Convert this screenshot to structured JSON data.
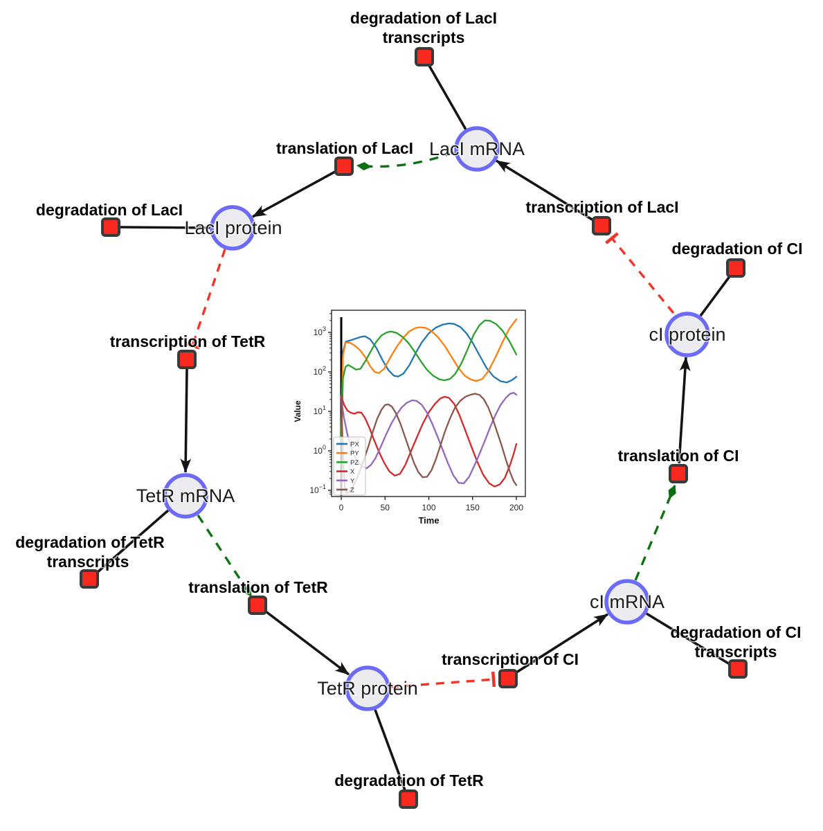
{
  "diagram": {
    "species": {
      "laci_mrna": {
        "label": "LacI mRNA"
      },
      "laci_protein": {
        "label": "LacI protein"
      },
      "tetr_mrna": {
        "label": "TetR mRNA"
      },
      "tetr_protein": {
        "label": "TetR protein"
      },
      "ci_mrna": {
        "label": "cI mRNA"
      },
      "ci_protein": {
        "label": "cI protein"
      }
    },
    "reactions": {
      "deg_laci_tx": {
        "lines": [
          "degradation of LacI",
          "transcripts"
        ]
      },
      "transl_laci": {
        "label": "translation of LacI"
      },
      "transcr_laci": {
        "label": "transcription of LacI"
      },
      "deg_laci": {
        "label": "degradation of LacI"
      },
      "transcr_tetr": {
        "label": "transcription of TetR"
      },
      "deg_ci": {
        "label": "degradation of CI"
      },
      "transl_ci": {
        "label": "translation of CI"
      },
      "deg_tetr_tx": {
        "lines": [
          "degradation of TetR",
          "transcripts"
        ]
      },
      "transl_tetr": {
        "label": "translation of TetR"
      },
      "transcr_ci": {
        "label": "transcription of CI"
      },
      "deg_ci_tx": {
        "lines": [
          "degradation of CI",
          "transcripts"
        ]
      },
      "deg_tetr": {
        "label": "degradation of TetR"
      }
    },
    "colors": {
      "species_fill": "#ebebf0",
      "species_border": "#6b6bf7",
      "reaction_fill": "#f8291f",
      "reaction_border": "#3a3a3a",
      "consumption_production_edge": "#141414",
      "modifier_edge": "#0d7212",
      "inhibition_edge": "#f43226"
    }
  },
  "chart_data": {
    "type": "line",
    "title": "",
    "xlabel": "Time",
    "ylabel": "Value",
    "x_ticks": [
      0,
      50,
      100,
      150,
      200
    ],
    "xlim": [
      -11,
      210
    ],
    "y_scale": "log",
    "y_tick_exponents": [
      -1,
      0,
      1,
      2,
      3
    ],
    "ylim_exponents": [
      -1.16,
      3.56
    ],
    "grid": false,
    "legend_position": "lower left",
    "vline_at_x": 0,
    "series": [
      {
        "name": "PX",
        "color": "#1f77b4",
        "points": [
          [
            0,
            3
          ],
          [
            2,
            320
          ],
          [
            5,
            580
          ],
          [
            10,
            625
          ],
          [
            16,
            690
          ],
          [
            22,
            765
          ],
          [
            27,
            800
          ],
          [
            33,
            670
          ],
          [
            40,
            410
          ],
          [
            47,
            200
          ],
          [
            54,
            110
          ],
          [
            60,
            80
          ],
          [
            65,
            76
          ],
          [
            71,
            90
          ],
          [
            78,
            150
          ],
          [
            85,
            300
          ],
          [
            92,
            560
          ],
          [
            100,
            950
          ],
          [
            108,
            1320
          ],
          [
            116,
            1580
          ],
          [
            123,
            1690
          ],
          [
            129,
            1640
          ],
          [
            136,
            1370
          ],
          [
            143,
            950
          ],
          [
            150,
            550
          ],
          [
            158,
            260
          ],
          [
            166,
            125
          ],
          [
            174,
            76
          ],
          [
            182,
            58
          ],
          [
            189,
            54
          ],
          [
            195,
            62
          ],
          [
            200,
            75
          ]
        ]
      },
      {
        "name": "PY",
        "color": "#ff7f0e",
        "points": [
          [
            0,
            2
          ],
          [
            2,
            260
          ],
          [
            5,
            560
          ],
          [
            10,
            545
          ],
          [
            16,
            455
          ],
          [
            22,
            345
          ],
          [
            28,
            225
          ],
          [
            33,
            140
          ],
          [
            38,
            100
          ],
          [
            43,
            93
          ],
          [
            49,
            120
          ],
          [
            56,
            230
          ],
          [
            63,
            420
          ],
          [
            70,
            700
          ],
          [
            78,
            1080
          ],
          [
            85,
            1300
          ],
          [
            90,
            1350
          ],
          [
            96,
            1310
          ],
          [
            103,
            1090
          ],
          [
            110,
            780
          ],
          [
            118,
            460
          ],
          [
            126,
            240
          ],
          [
            134,
            125
          ],
          [
            141,
            80
          ],
          [
            148,
            64
          ],
          [
            154,
            59
          ],
          [
            161,
            66
          ],
          [
            168,
            105
          ],
          [
            176,
            230
          ],
          [
            184,
            560
          ],
          [
            192,
            1250
          ],
          [
            200,
            2150
          ]
        ]
      },
      {
        "name": "PZ",
        "color": "#2ca02c",
        "points": [
          [
            0,
            1.5
          ],
          [
            2,
            70
          ],
          [
            5,
            135
          ],
          [
            8,
            150
          ],
          [
            12,
            133
          ],
          [
            17,
            114
          ],
          [
            22,
            120
          ],
          [
            28,
            195
          ],
          [
            34,
            340
          ],
          [
            40,
            580
          ],
          [
            46,
            840
          ],
          [
            52,
            1000
          ],
          [
            57,
            1050
          ],
          [
            63,
            975
          ],
          [
            70,
            770
          ],
          [
            77,
            530
          ],
          [
            84,
            320
          ],
          [
            91,
            185
          ],
          [
            98,
            112
          ],
          [
            105,
            80
          ],
          [
            112,
            65
          ],
          [
            118,
            61
          ],
          [
            124,
            66
          ],
          [
            130,
            88
          ],
          [
            137,
            160
          ],
          [
            144,
            360
          ],
          [
            151,
            850
          ],
          [
            158,
            1550
          ],
          [
            164,
            2000
          ],
          [
            170,
            1970
          ],
          [
            177,
            1620
          ],
          [
            184,
            1120
          ],
          [
            192,
            600
          ],
          [
            200,
            275
          ]
        ]
      },
      {
        "name": "X",
        "color": "#d62728",
        "points": [
          [
            0,
            25
          ],
          [
            3,
            15
          ],
          [
            7,
            10.5
          ],
          [
            11,
            9.2
          ],
          [
            15,
            8.7
          ],
          [
            19,
            9.5
          ],
          [
            23,
            9.3
          ],
          [
            27,
            6.8
          ],
          [
            32,
            3.9
          ],
          [
            37,
            2.0
          ],
          [
            43,
            0.95
          ],
          [
            49,
            0.5
          ],
          [
            55,
            0.3
          ],
          [
            61,
            0.235
          ],
          [
            67,
            0.26
          ],
          [
            73,
            0.43
          ],
          [
            79,
            0.9
          ],
          [
            86,
            2.1
          ],
          [
            93,
            4.8
          ],
          [
            100,
            9.5
          ],
          [
            107,
            15.5
          ],
          [
            113,
            21
          ],
          [
            118,
            23.5
          ],
          [
            123,
            22
          ],
          [
            129,
            15.5
          ],
          [
            135,
            8
          ],
          [
            141,
            3.6
          ],
          [
            148,
            1.4
          ],
          [
            155,
            0.55
          ],
          [
            162,
            0.25
          ],
          [
            169,
            0.15
          ],
          [
            175,
            0.125
          ],
          [
            181,
            0.14
          ],
          [
            187,
            0.21
          ],
          [
            193,
            0.45
          ],
          [
            197,
            0.85
          ],
          [
            200,
            1.5
          ]
        ]
      },
      {
        "name": "Y",
        "color": "#9467bd",
        "points": [
          [
            0,
            22
          ],
          [
            3,
            7
          ],
          [
            7,
            2.6
          ],
          [
            11,
            1.3
          ],
          [
            15,
            0.75
          ],
          [
            19,
            0.52
          ],
          [
            24,
            0.4
          ],
          [
            29,
            0.36
          ],
          [
            34,
            0.44
          ],
          [
            39,
            0.65
          ],
          [
            45,
            1.25
          ],
          [
            51,
            2.5
          ],
          [
            57,
            4.8
          ],
          [
            63,
            8.2
          ],
          [
            69,
            12.6
          ],
          [
            75,
            16.6
          ],
          [
            81,
            19
          ],
          [
            86,
            18.4
          ],
          [
            92,
            14.6
          ],
          [
            98,
            9.2
          ],
          [
            104,
            4.8
          ],
          [
            110,
            2.3
          ],
          [
            116,
            1.05
          ],
          [
            122,
            0.48
          ],
          [
            128,
            0.24
          ],
          [
            134,
            0.155
          ],
          [
            140,
            0.15
          ],
          [
            146,
            0.22
          ],
          [
            152,
            0.42
          ],
          [
            158,
            0.85
          ],
          [
            164,
            1.8
          ],
          [
            170,
            3.9
          ],
          [
            176,
            8
          ],
          [
            182,
            14.5
          ],
          [
            188,
            22
          ],
          [
            193,
            28
          ],
          [
            197,
            29.5
          ],
          [
            200,
            26.5
          ]
        ]
      },
      {
        "name": "Z",
        "color": "#8c564b",
        "points": [
          [
            0,
            25
          ],
          [
            1,
            4
          ],
          [
            2,
            0.7
          ],
          [
            4,
            0.12
          ],
          [
            6,
            0.085
          ],
          [
            9,
            0.09
          ],
          [
            13,
            0.12
          ],
          [
            17,
            0.18
          ],
          [
            21,
            0.3
          ],
          [
            26,
            0.6
          ],
          [
            31,
            1.3
          ],
          [
            36,
            3
          ],
          [
            41,
            6.5
          ],
          [
            46,
            11
          ],
          [
            50,
            14.5
          ],
          [
            54,
            15
          ],
          [
            58,
            13
          ],
          [
            63,
            8.5
          ],
          [
            68,
            4.6
          ],
          [
            73,
            2.2
          ],
          [
            78,
            1.05
          ],
          [
            83,
            0.5
          ],
          [
            88,
            0.29
          ],
          [
            93,
            0.215
          ],
          [
            98,
            0.22
          ],
          [
            103,
            0.32
          ],
          [
            108,
            0.6
          ],
          [
            113,
            1.3
          ],
          [
            118,
            2.9
          ],
          [
            124,
            6.5
          ],
          [
            130,
            12.5
          ],
          [
            136,
            18.5
          ],
          [
            142,
            23.5
          ],
          [
            148,
            26.5
          ],
          [
            153,
            28
          ],
          [
            158,
            26
          ],
          [
            163,
            20
          ],
          [
            168,
            12.5
          ],
          [
            173,
            6.5
          ],
          [
            178,
            3
          ],
          [
            183,
            1.4
          ],
          [
            188,
            0.6
          ],
          [
            193,
            0.28
          ],
          [
            197,
            0.17
          ],
          [
            200,
            0.135
          ]
        ]
      }
    ]
  }
}
